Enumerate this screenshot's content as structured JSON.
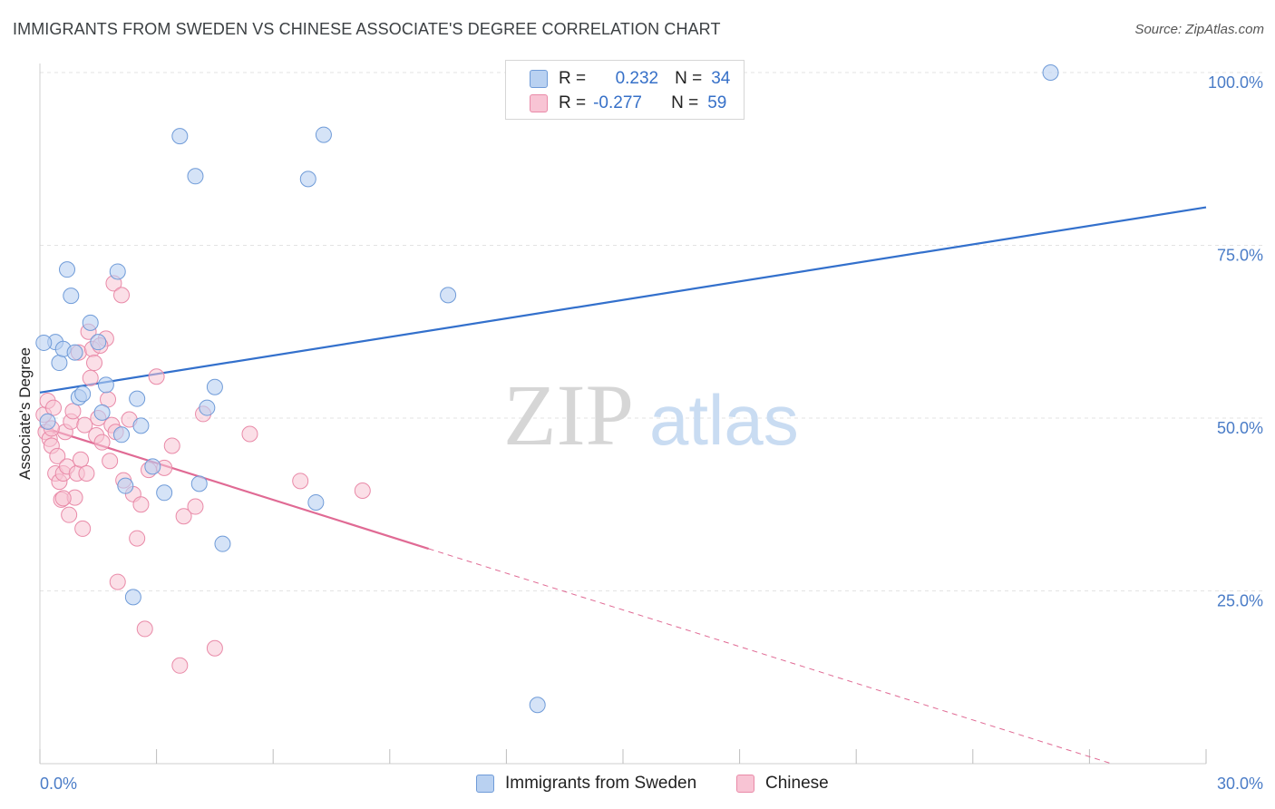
{
  "title": "IMMIGRANTS FROM SWEDEN VS CHINESE ASSOCIATE'S DEGREE CORRELATION CHART",
  "source": "Source: ZipAtlas.com",
  "watermark": {
    "zip": "ZIP",
    "atlas": "atlas"
  },
  "colors": {
    "sweden_fill": "#b9d1f1",
    "sweden_stroke": "#6f9bd8",
    "sweden_line": "#3370cc",
    "chinese_fill": "#f8c4d4",
    "chinese_stroke": "#e98aa8",
    "chinese_line": "#e06a94",
    "tick_text": "#4a7cc7",
    "grid": "#e3e3e3"
  },
  "legend": {
    "rows": [
      {
        "r_label": "R =",
        "r_value": "0.232",
        "n_label": "N =",
        "n_value": "34"
      },
      {
        "r_label": "R =",
        "r_value": "-0.277",
        "n_label": "N =",
        "n_value": "59"
      }
    ]
  },
  "bottom_legend": [
    {
      "label": "Immigrants from Sweden"
    },
    {
      "label": "Chinese"
    }
  ],
  "chart_data": {
    "type": "scatter",
    "title": "IMMIGRANTS FROM SWEDEN VS CHINESE ASSOCIATE'S DEGREE CORRELATION CHART",
    "xlabel": "",
    "ylabel": "Associate's Degree",
    "xlim": [
      0,
      30
    ],
    "ylim": [
      0,
      100
    ],
    "x_tick_labels": [
      "0.0%",
      "30.0%"
    ],
    "y_tick_labels": [
      "25.0%",
      "50.0%",
      "75.0%",
      "100.0%"
    ],
    "y_ticks": [
      25,
      50,
      75,
      100
    ],
    "grid": true,
    "legend_position": "top-center",
    "series": [
      {
        "name": "Immigrants from Sweden",
        "R": 0.232,
        "N": 34,
        "trend": {
          "x": [
            0,
            30
          ],
          "y": [
            53.7,
            80.5
          ],
          "dashed_x": []
        },
        "points": [
          [
            0.2,
            49.5
          ],
          [
            0.4,
            61.0
          ],
          [
            0.5,
            58.0
          ],
          [
            0.6,
            60.0
          ],
          [
            0.7,
            71.5
          ],
          [
            0.8,
            67.7
          ],
          [
            0.9,
            59.5
          ],
          [
            1.0,
            53.0
          ],
          [
            1.1,
            53.5
          ],
          [
            1.3,
            63.8
          ],
          [
            1.5,
            61.0
          ],
          [
            1.6,
            50.8
          ],
          [
            1.7,
            54.8
          ],
          [
            2.0,
            71.2
          ],
          [
            2.1,
            47.6
          ],
          [
            2.2,
            40.2
          ],
          [
            2.4,
            24.1
          ],
          [
            2.5,
            52.8
          ],
          [
            2.6,
            48.9
          ],
          [
            2.9,
            43.0
          ],
          [
            3.2,
            39.2
          ],
          [
            3.6,
            90.8
          ],
          [
            4.0,
            85.0
          ],
          [
            4.1,
            40.5
          ],
          [
            4.3,
            51.5
          ],
          [
            4.5,
            54.5
          ],
          [
            4.7,
            31.8
          ],
          [
            6.9,
            84.6
          ],
          [
            7.1,
            37.8
          ],
          [
            7.3,
            91.0
          ],
          [
            10.5,
            67.8
          ],
          [
            12.8,
            8.5
          ],
          [
            26.0,
            100.0
          ],
          [
            0.1,
            60.9
          ]
        ]
      },
      {
        "name": "Chinese",
        "R": -0.277,
        "N": 59,
        "trend": {
          "x": [
            0,
            10
          ],
          "y": [
            48.8,
            31.1
          ],
          "dashed_x": [
            10,
            30
          ]
        },
        "points": [
          [
            0.1,
            50.5
          ],
          [
            0.15,
            48.0
          ],
          [
            0.2,
            52.5
          ],
          [
            0.25,
            47.0
          ],
          [
            0.3,
            46.0
          ],
          [
            0.35,
            51.5
          ],
          [
            0.4,
            42.0
          ],
          [
            0.45,
            44.5
          ],
          [
            0.5,
            40.8
          ],
          [
            0.55,
            38.2
          ],
          [
            0.6,
            42.0
          ],
          [
            0.65,
            48.0
          ],
          [
            0.7,
            43.0
          ],
          [
            0.75,
            36.0
          ],
          [
            0.8,
            49.5
          ],
          [
            0.85,
            51.0
          ],
          [
            0.9,
            38.5
          ],
          [
            0.95,
            42.0
          ],
          [
            1.0,
            59.5
          ],
          [
            1.05,
            44.0
          ],
          [
            1.1,
            34.0
          ],
          [
            1.15,
            49.0
          ],
          [
            1.2,
            42.0
          ],
          [
            1.25,
            62.5
          ],
          [
            1.3,
            55.8
          ],
          [
            1.35,
            60.0
          ],
          [
            1.4,
            58.0
          ],
          [
            1.45,
            47.5
          ],
          [
            1.5,
            50.0
          ],
          [
            1.6,
            46.5
          ],
          [
            1.7,
            61.5
          ],
          [
            1.75,
            52.7
          ],
          [
            1.8,
            43.8
          ],
          [
            1.85,
            49.0
          ],
          [
            1.9,
            69.5
          ],
          [
            1.95,
            48.0
          ],
          [
            2.0,
            26.3
          ],
          [
            2.1,
            67.8
          ],
          [
            2.15,
            41.0
          ],
          [
            2.3,
            49.8
          ],
          [
            2.4,
            39.0
          ],
          [
            2.5,
            32.6
          ],
          [
            2.6,
            37.5
          ],
          [
            2.7,
            19.5
          ],
          [
            2.8,
            42.5
          ],
          [
            3.0,
            56.0
          ],
          [
            3.2,
            42.8
          ],
          [
            3.4,
            46.0
          ],
          [
            3.6,
            14.2
          ],
          [
            3.7,
            35.8
          ],
          [
            4.0,
            37.2
          ],
          [
            4.2,
            50.6
          ],
          [
            4.5,
            16.7
          ],
          [
            5.4,
            47.7
          ],
          [
            6.7,
            40.9
          ],
          [
            8.3,
            39.5
          ],
          [
            0.3,
            48.5
          ],
          [
            0.6,
            38.4
          ],
          [
            1.55,
            60.5
          ]
        ]
      }
    ]
  }
}
